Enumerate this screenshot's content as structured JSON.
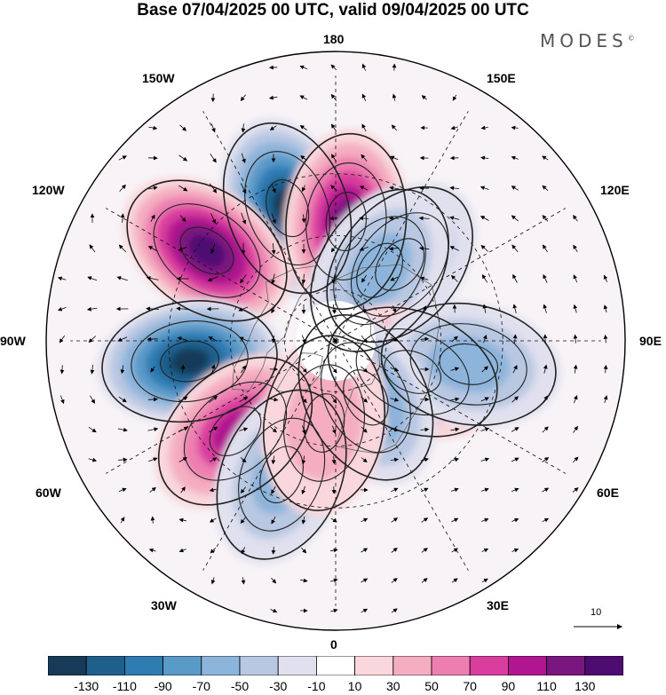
{
  "title": "Base 07/04/2025 00 UTC, valid 09/04/2025 00 UTC",
  "brand": "MODES",
  "brand_mark": "©",
  "longitude_labels": [
    {
      "name": "lon-180",
      "text": "180"
    },
    {
      "name": "lon-150w",
      "text": "150W"
    },
    {
      "name": "lon-150e",
      "text": "150E"
    },
    {
      "name": "lon-120w",
      "text": "120W"
    },
    {
      "name": "lon-120e",
      "text": "120E"
    },
    {
      "name": "lon-90w",
      "text": "90W"
    },
    {
      "name": "lon-90e",
      "text": "90E"
    },
    {
      "name": "lon-60w",
      "text": "60W"
    },
    {
      "name": "lon-60e",
      "text": "60E"
    },
    {
      "name": "lon-30w",
      "text": "30W"
    },
    {
      "name": "lon-30e",
      "text": "30E"
    },
    {
      "name": "lon-0",
      "text": "0"
    }
  ],
  "reference_vector": {
    "label": "10"
  },
  "colorbar": {
    "ticks": [
      "-130",
      "-110",
      "-90",
      "-70",
      "-50",
      "-30",
      "-10",
      "10",
      "30",
      "50",
      "70",
      "90",
      "110",
      "130"
    ],
    "colors": [
      "#163a58",
      "#1f5f8c",
      "#2f7cb3",
      "#5a9ac8",
      "#8db4da",
      "#b9c8e2",
      "#e0e0ee",
      "#ffffff",
      "#f9d7dc",
      "#f4aec0",
      "#ec7fb0",
      "#d93d9e",
      "#b0168f",
      "#7a1680",
      "#4d0c72"
    ]
  },
  "field": {
    "projection": "north-polar-stereographic",
    "anomalies": [
      {
        "name": "anomaly-negative-150w",
        "lon": -160,
        "lat": 38,
        "value": -140
      },
      {
        "name": "anomaly-positive-170e",
        "lon": 175,
        "lat": 45,
        "value": 120
      },
      {
        "name": "anomaly-positive-125w",
        "lon": -125,
        "lat": 33,
        "value": 130
      },
      {
        "name": "anomaly-negative-85w",
        "lon": -82,
        "lat": 36,
        "value": -130
      },
      {
        "name": "anomaly-negative-140e",
        "lon": 140,
        "lat": 52,
        "value": -50
      },
      {
        "name": "anomaly-negative-150e",
        "lon": 148,
        "lat": 58,
        "value": -60
      },
      {
        "name": "anomaly-positive-65e",
        "lon": 68,
        "lat": 58,
        "value": 70
      },
      {
        "name": "anomaly-negative-80e",
        "lon": 80,
        "lat": 40,
        "value": -60
      },
      {
        "name": "anomaly-negative-30e",
        "lon": 28,
        "lat": 65,
        "value": -80
      },
      {
        "name": "anomaly-positive-50w",
        "lon": -48,
        "lat": 40,
        "value": 100
      },
      {
        "name": "anomaly-negative-25w",
        "lon": -22,
        "lat": 37,
        "value": -60
      },
      {
        "name": "anomaly-positive-10w",
        "lon": -8,
        "lat": 58,
        "value": 40
      }
    ]
  }
}
